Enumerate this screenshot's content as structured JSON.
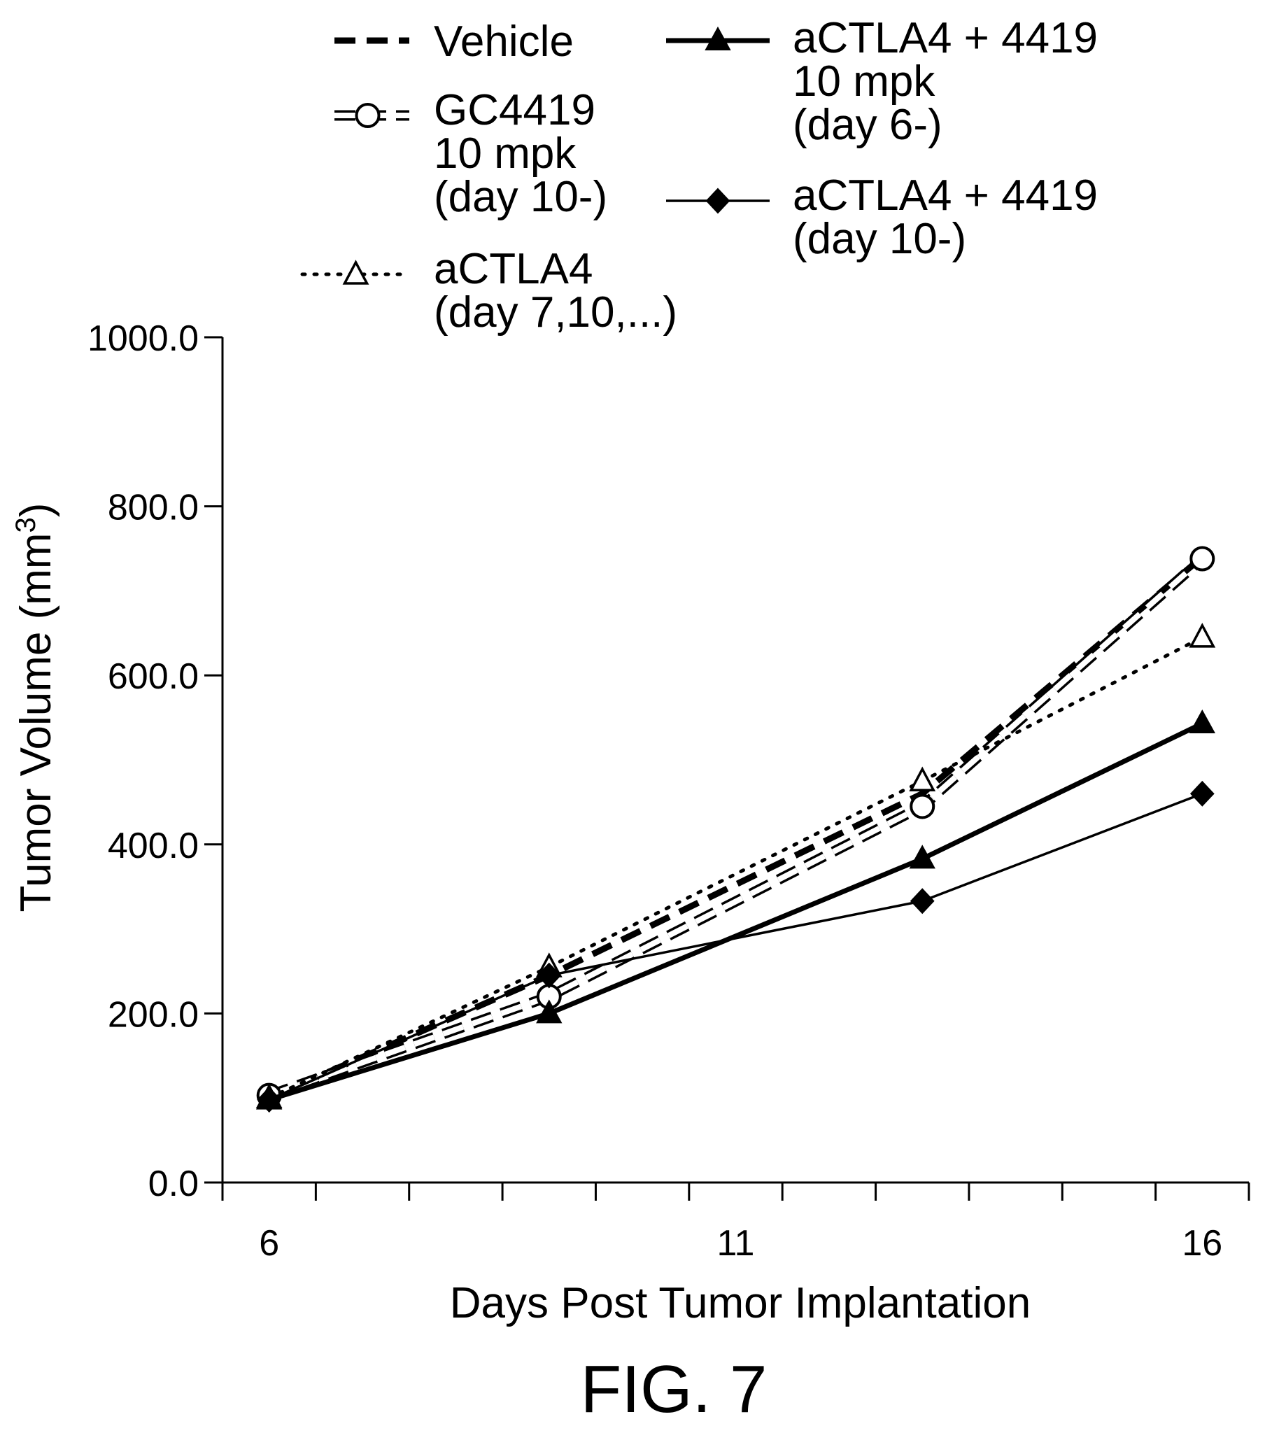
{
  "chart_data": {
    "type": "line",
    "title": "",
    "xlabel": "Days Post Tumor Implantation",
    "ylabel": "Tumor Volume (mm",
    "ylabel_sup": "3",
    "ylabel_close": ")",
    "xlim": [
      5.5,
      16.5
    ],
    "ylim": [
      0,
      1000
    ],
    "x_ticks": [
      6,
      11,
      16
    ],
    "x_tick_labels": [
      "6",
      "11",
      "16"
    ],
    "y_ticks": [
      0,
      200,
      400,
      600,
      800,
      1000
    ],
    "y_tick_labels": [
      "0.0",
      "200.0",
      "400.0",
      "600.0",
      "800.0",
      "1000.0"
    ],
    "grid": false,
    "legend_position": "top",
    "series": [
      {
        "key": "vehicle",
        "legend_lines": [
          "Vehicle"
        ],
        "style": "dashed-bold",
        "marker": "none",
        "x": [
          6,
          9,
          13,
          16
        ],
        "y": [
          100,
          245,
          460,
          740
        ]
      },
      {
        "key": "gc4419",
        "legend_lines": [
          "GC4419",
          "10 mpk",
          "(day 10-)"
        ],
        "style": "dashed-open",
        "marker": "circle-open",
        "x": [
          6,
          9,
          13,
          16
        ],
        "y": [
          103,
          220,
          445,
          738
        ]
      },
      {
        "key": "actla4",
        "legend_lines": [
          "aCTLA4",
          "(day 7,10,...)"
        ],
        "style": "dotted",
        "marker": "triangle-open",
        "x": [
          6,
          9,
          13,
          16
        ],
        "y": [
          100,
          255,
          475,
          645
        ]
      },
      {
        "key": "actla4_4419_d6",
        "legend_lines": [
          "aCTLA4 + 4419",
          "10 mpk",
          "(day 6-)"
        ],
        "style": "solid-bold",
        "marker": "triangle-filled",
        "x": [
          6,
          9,
          13,
          16
        ],
        "y": [
          98,
          200,
          383,
          543
        ]
      },
      {
        "key": "actla4_4419_d10",
        "legend_lines": [
          "aCTLA4 + 4419",
          "(day 10-)"
        ],
        "style": "solid",
        "marker": "diamond-filled",
        "x": [
          6,
          9,
          13,
          16
        ],
        "y": [
          98,
          245,
          333,
          460
        ]
      }
    ]
  },
  "caption": "FIG. 7"
}
